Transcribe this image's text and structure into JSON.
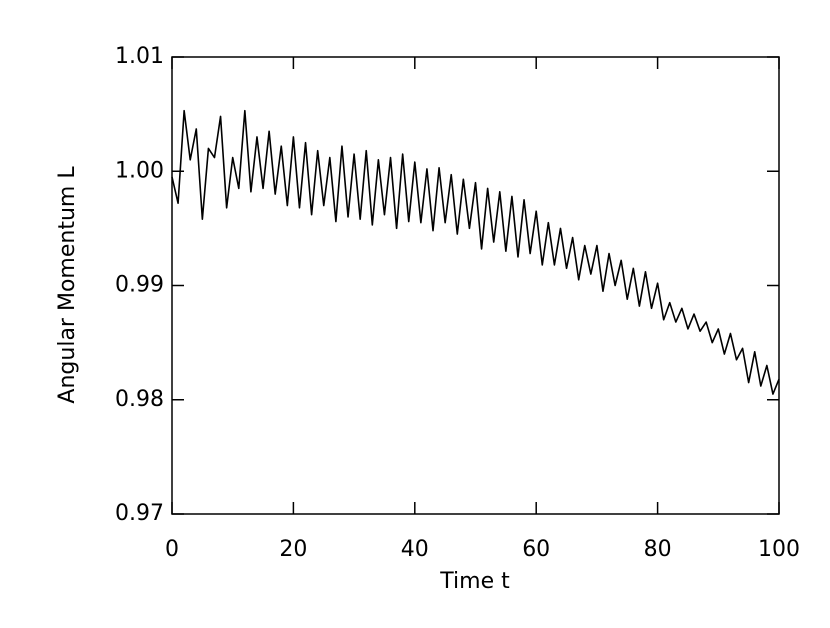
{
  "chart_data": {
    "type": "line",
    "x_label": "Time t",
    "y_label": "Angular Momentum L",
    "xlim": [
      0,
      100
    ],
    "xticks": [
      0,
      20,
      40,
      60,
      80,
      100
    ],
    "ylim": [
      0.97,
      1.01
    ],
    "yticks": [
      0.97,
      0.98,
      0.99,
      {
        "value": 1,
        "label": "1.00"
      },
      1.01
    ],
    "grid": false,
    "series": [
      {
        "color": "#000000",
        "x": [
          0,
          1,
          2,
          3,
          4,
          5,
          6,
          7,
          8,
          9,
          10,
          11,
          12,
          13,
          14,
          15,
          16,
          17,
          18,
          19,
          20,
          21,
          22,
          23,
          24,
          25,
          26,
          27,
          28,
          29,
          30,
          31,
          32,
          33,
          34,
          35,
          36,
          37,
          38,
          39,
          40,
          41,
          42,
          43,
          44,
          45,
          46,
          47,
          48,
          49,
          50,
          51,
          52,
          53,
          54,
          55,
          56,
          57,
          58,
          59,
          60,
          61,
          62,
          63,
          64,
          65,
          66,
          67,
          68,
          69,
          70,
          71,
          72,
          73,
          74,
          75,
          76,
          77,
          78,
          79,
          80,
          81,
          82,
          83,
          84,
          85,
          86,
          87,
          88,
          89,
          90,
          91,
          92,
          93,
          94,
          95,
          96,
          97,
          98,
          99,
          100
        ],
        "values": [
          0.9995,
          0.9972,
          1.0053,
          1.001,
          1.0037,
          0.9958,
          1.002,
          1.0012,
          1.0048,
          0.9968,
          1.0012,
          0.9985,
          1.0053,
          0.9982,
          1.003,
          0.9985,
          1.0035,
          0.998,
          1.0022,
          0.997,
          1.003,
          0.9968,
          1.0025,
          0.9962,
          1.0018,
          0.997,
          1.0012,
          0.9956,
          1.0022,
          0.996,
          1.0015,
          0.9958,
          1.0018,
          0.9953,
          1.001,
          0.9962,
          1.0012,
          0.995,
          1.0015,
          0.9956,
          1.0008,
          0.9955,
          1.0002,
          0.9948,
          1.0003,
          0.9955,
          0.9997,
          0.9945,
          0.9993,
          0.995,
          0.999,
          0.9932,
          0.9985,
          0.9938,
          0.9982,
          0.993,
          0.9978,
          0.9925,
          0.9975,
          0.9928,
          0.9965,
          0.9918,
          0.9955,
          0.9918,
          0.995,
          0.9915,
          0.9942,
          0.9905,
          0.9935,
          0.991,
          0.9935,
          0.9895,
          0.9928,
          0.99,
          0.9922,
          0.9888,
          0.9915,
          0.9882,
          0.9912,
          0.988,
          0.9902,
          0.987,
          0.9885,
          0.9868,
          0.988,
          0.9862,
          0.9875,
          0.986,
          0.9868,
          0.985,
          0.9862,
          0.984,
          0.9858,
          0.9835,
          0.9845,
          0.9815,
          0.9842,
          0.9812,
          0.983,
          0.9805,
          0.9818
        ]
      }
    ]
  }
}
